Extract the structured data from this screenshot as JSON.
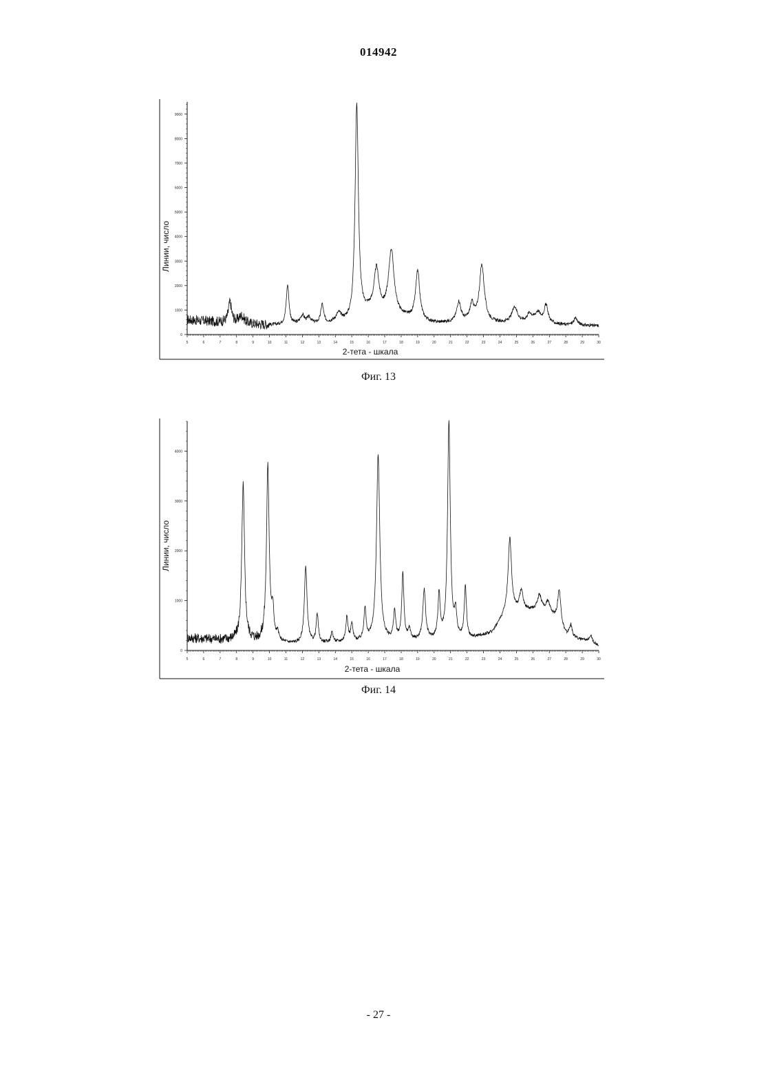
{
  "header": {
    "doc_number": "014942"
  },
  "footer": {
    "page_number": "- 27 -"
  },
  "chart_data": [
    {
      "type": "line",
      "caption": "Фиг. 13",
      "xlabel": "2-тета - шкала",
      "ylabel": "Линии, число",
      "xlim": [
        5,
        30
      ],
      "ylim": [
        0,
        9500
      ],
      "xticks": [
        5,
        6,
        7,
        8,
        9,
        10,
        11,
        12,
        13,
        14,
        15,
        16,
        17,
        18,
        19,
        20,
        21,
        22,
        23,
        24,
        25,
        26,
        27,
        28,
        29,
        30
      ],
      "yticks": [
        0,
        1000,
        2000,
        3000,
        4000,
        5000,
        6000,
        7000,
        8000,
        9000
      ],
      "baseline": [
        [
          5,
          600
        ],
        [
          7,
          500
        ],
        [
          8,
          450
        ],
        [
          10,
          380
        ],
        [
          13,
          420
        ],
        [
          15,
          480
        ],
        [
          16,
          900
        ],
        [
          18,
          700
        ],
        [
          20,
          450
        ],
        [
          22,
          500
        ],
        [
          24,
          450
        ],
        [
          26,
          450
        ],
        [
          28,
          380
        ],
        [
          30,
          350
        ]
      ],
      "peaks": [
        {
          "x": 7.6,
          "y": 1300,
          "w": 0.12
        },
        {
          "x": 8.3,
          "y": 750,
          "w": 0.2
        },
        {
          "x": 11.1,
          "y": 2000,
          "w": 0.1
        },
        {
          "x": 12.0,
          "y": 750,
          "w": 0.15
        },
        {
          "x": 12.4,
          "y": 650,
          "w": 0.15
        },
        {
          "x": 13.2,
          "y": 1200,
          "w": 0.1
        },
        {
          "x": 14.2,
          "y": 800,
          "w": 0.2
        },
        {
          "x": 15.3,
          "y": 9400,
          "w": 0.12
        },
        {
          "x": 16.5,
          "y": 2600,
          "w": 0.18
        },
        {
          "x": 17.4,
          "y": 3400,
          "w": 0.2
        },
        {
          "x": 19.0,
          "y": 2550,
          "w": 0.15
        },
        {
          "x": 21.5,
          "y": 1300,
          "w": 0.15
        },
        {
          "x": 22.3,
          "y": 1150,
          "w": 0.15
        },
        {
          "x": 22.9,
          "y": 2800,
          "w": 0.18
        },
        {
          "x": 24.9,
          "y": 1100,
          "w": 0.2
        },
        {
          "x": 25.8,
          "y": 800,
          "w": 0.2
        },
        {
          "x": 26.3,
          "y": 850,
          "w": 0.2
        },
        {
          "x": 26.8,
          "y": 1150,
          "w": 0.15
        },
        {
          "x": 28.6,
          "y": 650,
          "w": 0.15
        }
      ]
    },
    {
      "type": "line",
      "caption": "Фиг. 14",
      "xlabel": "2-тета - шкала",
      "ylabel": "Линии, число",
      "xlim": [
        5,
        30
      ],
      "ylim": [
        0,
        4600
      ],
      "xticks": [
        5,
        6,
        7,
        8,
        9,
        10,
        11,
        12,
        13,
        14,
        15,
        16,
        17,
        18,
        19,
        20,
        21,
        22,
        23,
        24,
        25,
        26,
        27,
        28,
        29,
        30
      ],
      "yticks": [
        0,
        1000,
        2000,
        3000,
        4000
      ],
      "baseline": [
        [
          5,
          250
        ],
        [
          8,
          200
        ],
        [
          10,
          150
        ],
        [
          12,
          120
        ],
        [
          14,
          150
        ],
        [
          17,
          180
        ],
        [
          20,
          200
        ],
        [
          22,
          200
        ],
        [
          23.5,
          350
        ],
        [
          24.5,
          800
        ],
        [
          27,
          800
        ],
        [
          28,
          300
        ],
        [
          30,
          100
        ]
      ],
      "peaks": [
        {
          "x": 8.4,
          "y": 3300,
          "w": 0.1
        },
        {
          "x": 9.9,
          "y": 3650,
          "w": 0.1
        },
        {
          "x": 10.2,
          "y": 700,
          "w": 0.08
        },
        {
          "x": 10.5,
          "y": 300,
          "w": 0.08
        },
        {
          "x": 12.2,
          "y": 1650,
          "w": 0.1
        },
        {
          "x": 12.9,
          "y": 700,
          "w": 0.08
        },
        {
          "x": 13.8,
          "y": 350,
          "w": 0.08
        },
        {
          "x": 14.7,
          "y": 650,
          "w": 0.08
        },
        {
          "x": 15.0,
          "y": 500,
          "w": 0.08
        },
        {
          "x": 15.8,
          "y": 800,
          "w": 0.08
        },
        {
          "x": 16.6,
          "y": 3900,
          "w": 0.12
        },
        {
          "x": 17.6,
          "y": 750,
          "w": 0.08
        },
        {
          "x": 18.1,
          "y": 1500,
          "w": 0.08
        },
        {
          "x": 18.5,
          "y": 400,
          "w": 0.08
        },
        {
          "x": 19.4,
          "y": 1200,
          "w": 0.1
        },
        {
          "x": 20.3,
          "y": 1100,
          "w": 0.08
        },
        {
          "x": 20.9,
          "y": 4550,
          "w": 0.1
        },
        {
          "x": 21.3,
          "y": 700,
          "w": 0.08
        },
        {
          "x": 21.9,
          "y": 1250,
          "w": 0.08
        },
        {
          "x": 24.6,
          "y": 2250,
          "w": 0.12
        },
        {
          "x": 25.3,
          "y": 1200,
          "w": 0.12
        },
        {
          "x": 26.4,
          "y": 1100,
          "w": 0.15
        },
        {
          "x": 26.9,
          "y": 950,
          "w": 0.12
        },
        {
          "x": 27.6,
          "y": 1200,
          "w": 0.12
        },
        {
          "x": 28.3,
          "y": 500,
          "w": 0.1
        },
        {
          "x": 29.5,
          "y": 300,
          "w": 0.12
        }
      ]
    }
  ]
}
